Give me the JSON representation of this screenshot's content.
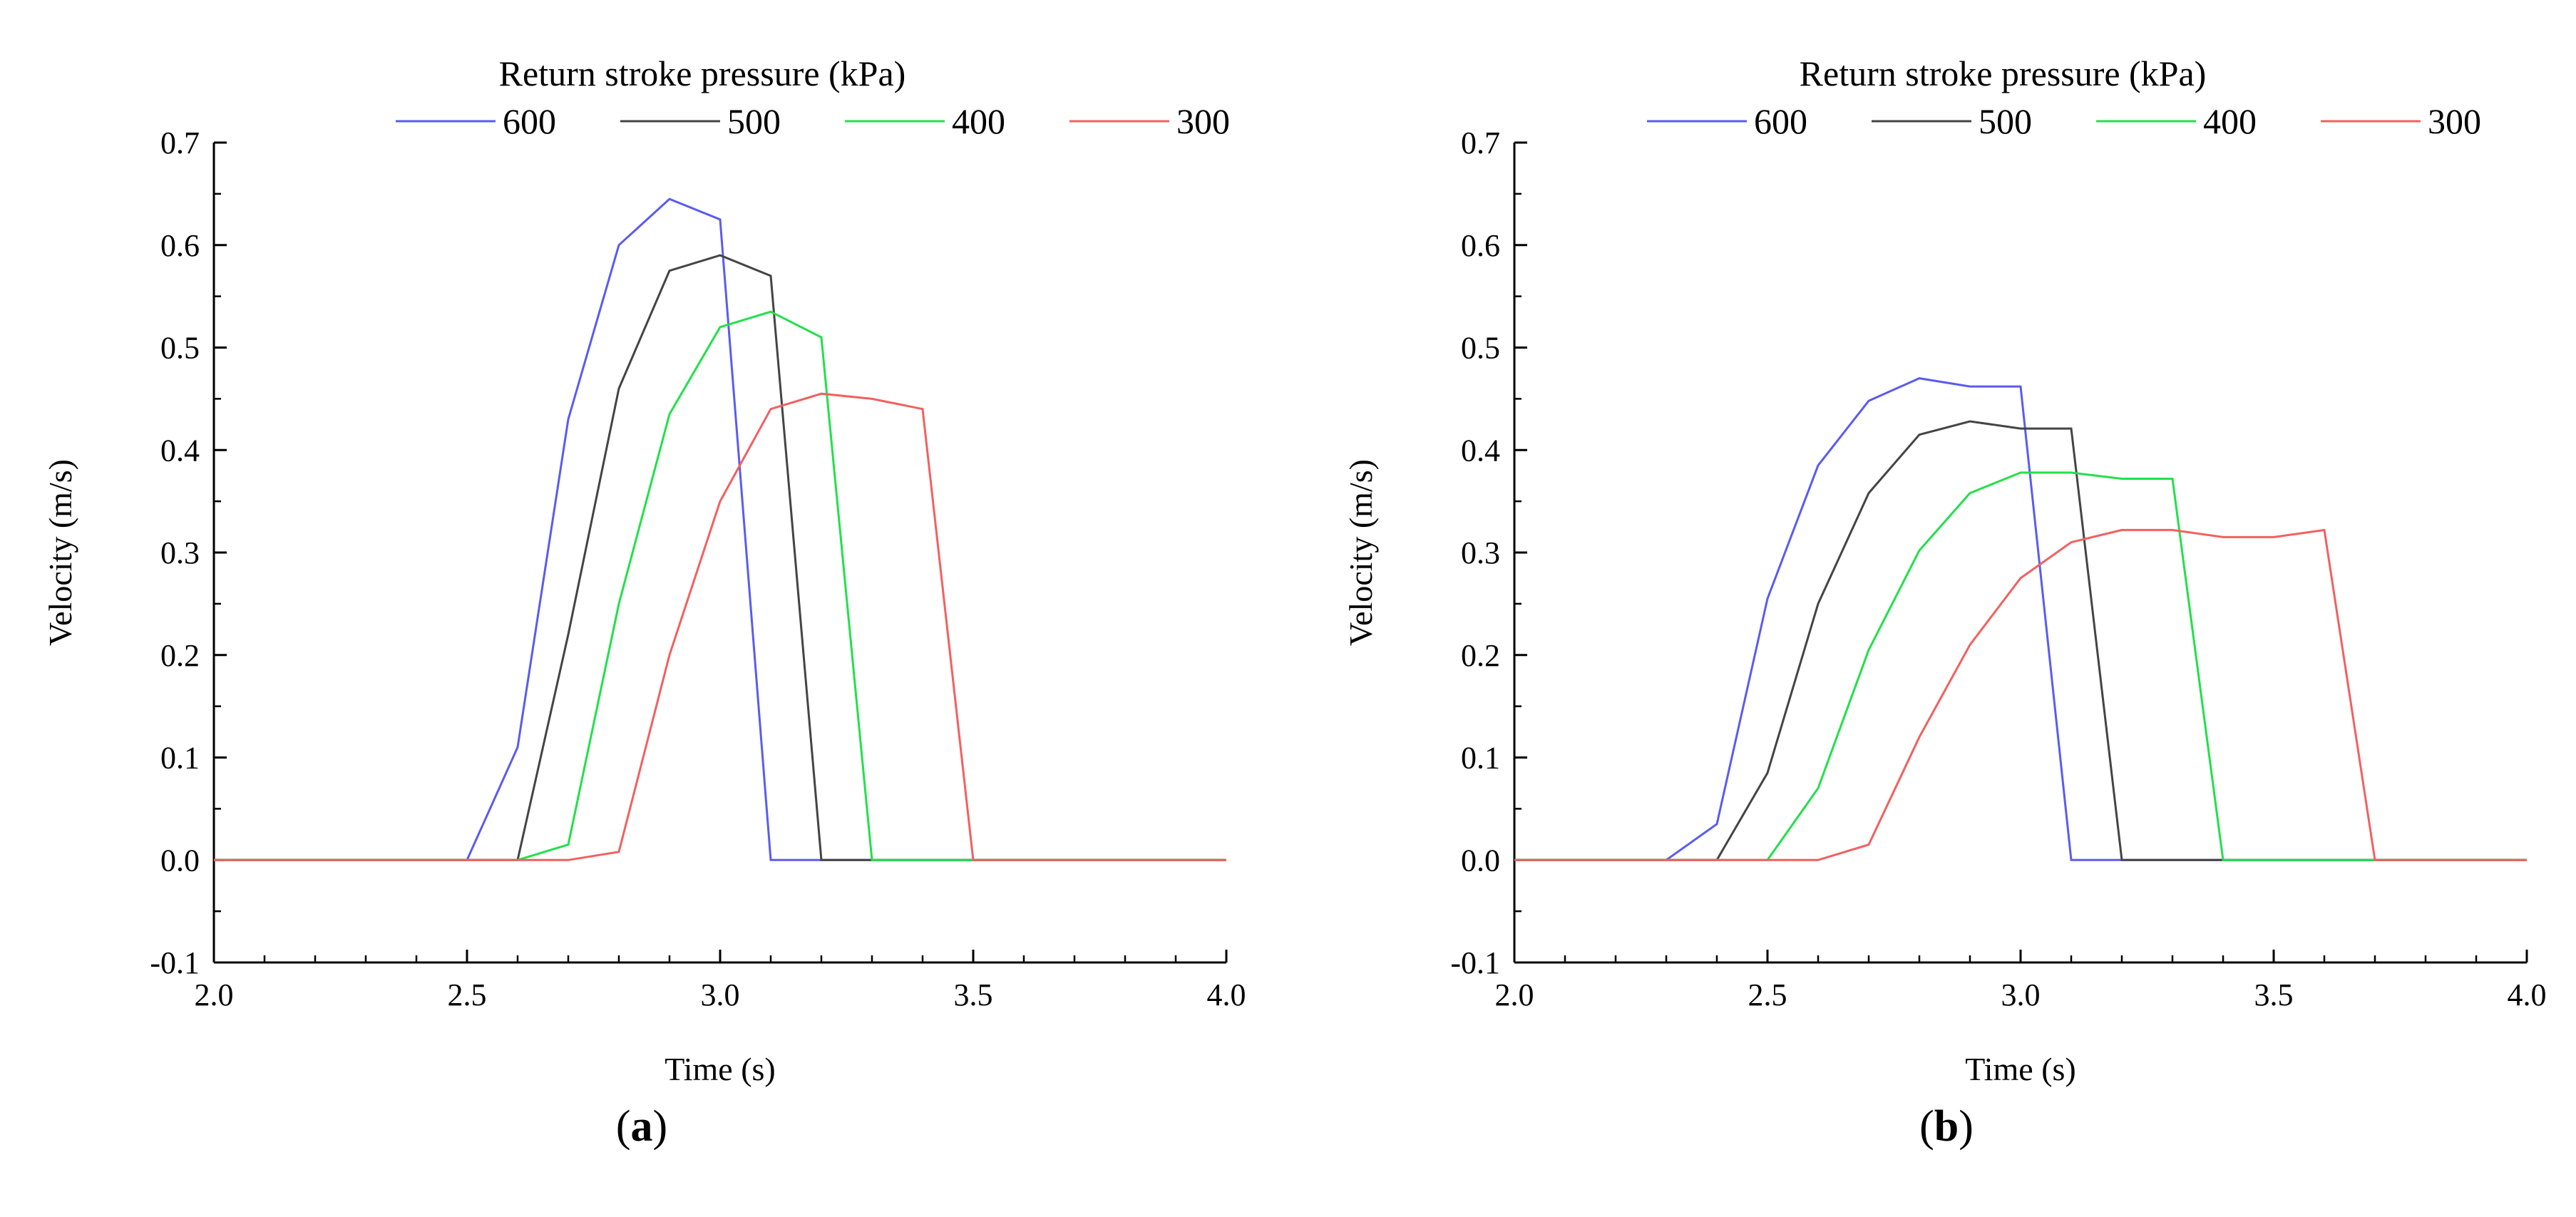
{
  "chart_data": [
    {
      "type": "line",
      "panel_label": "a",
      "legend_title": "Return stroke pressure (kPa)",
      "xlabel": "Time (s)",
      "ylabel": "Velocity (m/s)",
      "xlim": [
        2.0,
        4.0
      ],
      "ylim": [
        -0.1,
        0.7
      ],
      "xticks": [
        "2.0",
        "2.5",
        "3.0",
        "3.5",
        "4.0"
      ],
      "yticks": [
        "-0.1",
        "0.0",
        "0.1",
        "0.2",
        "0.3",
        "0.4",
        "0.5",
        "0.6",
        "0.7"
      ],
      "legend_placement": "top",
      "grid": false,
      "series": [
        {
          "name": "600",
          "color": "#5b5bf0",
          "x": [
            2.0,
            2.5,
            2.6,
            2.7,
            2.8,
            2.9,
            3.0,
            3.1,
            4.0
          ],
          "y": [
            0.0,
            0.0,
            0.11,
            0.43,
            0.6,
            0.645,
            0.625,
            0.0,
            0.0
          ]
        },
        {
          "name": "500",
          "color": "#444444",
          "x": [
            2.0,
            2.6,
            2.7,
            2.8,
            2.9,
            3.0,
            3.1,
            3.2,
            4.0
          ],
          "y": [
            0.0,
            0.0,
            0.22,
            0.46,
            0.575,
            0.59,
            0.57,
            0.0,
            0.0
          ]
        },
        {
          "name": "400",
          "color": "#22e04a",
          "x": [
            2.0,
            2.6,
            2.7,
            2.8,
            2.9,
            3.0,
            3.1,
            3.2,
            3.3,
            4.0
          ],
          "y": [
            0.0,
            0.0,
            0.015,
            0.25,
            0.435,
            0.52,
            0.535,
            0.51,
            0.0,
            0.0
          ]
        },
        {
          "name": "300",
          "color": "#f26060",
          "x": [
            2.0,
            2.7,
            2.8,
            2.9,
            3.0,
            3.1,
            3.2,
            3.3,
            3.4,
            3.5,
            4.0
          ],
          "y": [
            0.0,
            0.0,
            0.008,
            0.2,
            0.35,
            0.44,
            0.455,
            0.45,
            0.44,
            0.0,
            0.0
          ]
        }
      ]
    },
    {
      "type": "line",
      "panel_label": "b",
      "legend_title": "Return stroke pressure (kPa)",
      "xlabel": "Time (s)",
      "ylabel": "Velocity (m/s)",
      "xlim": [
        2.0,
        4.0
      ],
      "ylim": [
        -0.1,
        0.7
      ],
      "xticks": [
        "2.0",
        "2.5",
        "3.0",
        "3.5",
        "4.0"
      ],
      "yticks": [
        "-0.1",
        "0.0",
        "0.1",
        "0.2",
        "0.3",
        "0.4",
        "0.5",
        "0.6",
        "0.7"
      ],
      "legend_placement": "top",
      "grid": false,
      "series": [
        {
          "name": "600",
          "color": "#5b5bf0",
          "x": [
            2.0,
            2.3,
            2.4,
            2.5,
            2.6,
            2.7,
            2.8,
            2.9,
            3.0,
            3.1,
            4.0
          ],
          "y": [
            0.0,
            0.0,
            0.035,
            0.255,
            0.385,
            0.448,
            0.47,
            0.462,
            0.462,
            0.0,
            0.0
          ]
        },
        {
          "name": "500",
          "color": "#444444",
          "x": [
            2.0,
            2.4,
            2.5,
            2.6,
            2.7,
            2.8,
            2.9,
            3.0,
            3.1,
            3.2,
            4.0
          ],
          "y": [
            0.0,
            0.0,
            0.085,
            0.25,
            0.358,
            0.415,
            0.428,
            0.421,
            0.421,
            0.0,
            0.0
          ]
        },
        {
          "name": "400",
          "color": "#22e04a",
          "x": [
            2.0,
            2.5,
            2.6,
            2.7,
            2.8,
            2.9,
            3.0,
            3.1,
            3.2,
            3.3,
            3.4,
            4.0
          ],
          "y": [
            0.0,
            0.0,
            0.07,
            0.205,
            0.302,
            0.358,
            0.378,
            0.378,
            0.372,
            0.372,
            0.0,
            0.0
          ]
        },
        {
          "name": "300",
          "color": "#f26060",
          "x": [
            2.0,
            2.6,
            2.7,
            2.8,
            2.9,
            3.0,
            3.1,
            3.2,
            3.3,
            3.4,
            3.5,
            3.6,
            3.7,
            4.0
          ],
          "y": [
            0.0,
            0.0,
            0.015,
            0.12,
            0.21,
            0.275,
            0.31,
            0.322,
            0.322,
            0.315,
            0.315,
            0.322,
            0.0,
            0.0
          ]
        }
      ]
    }
  ]
}
